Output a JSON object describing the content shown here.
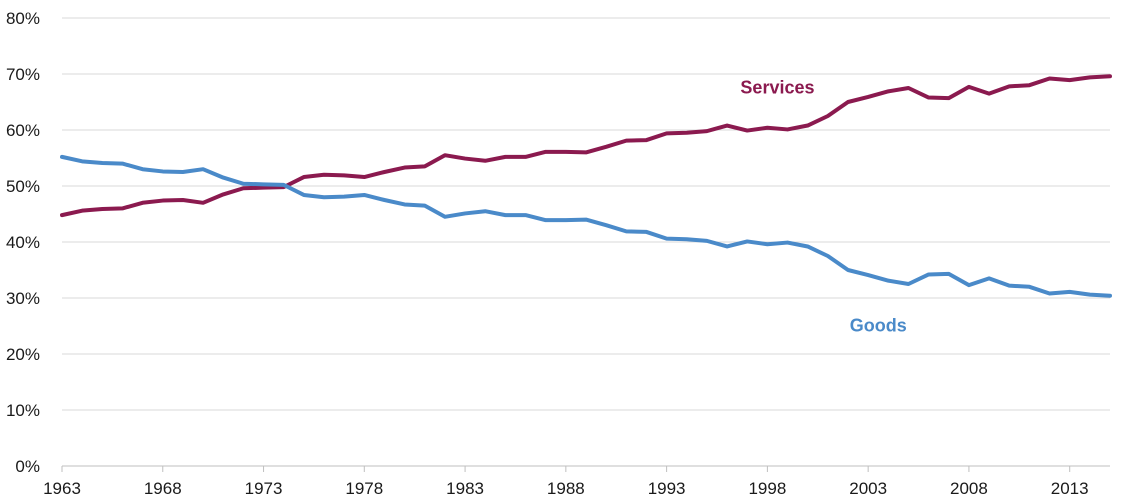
{
  "chart_data": {
    "type": "line",
    "title": "",
    "xlabel": "",
    "ylabel": "",
    "xlim": [
      1963,
      2015
    ],
    "ylim": [
      0,
      80
    ],
    "grid": true,
    "y_ticks": [
      0,
      10,
      20,
      30,
      40,
      50,
      60,
      70,
      80
    ],
    "y_tick_labels": [
      "0%",
      "10%",
      "20%",
      "30%",
      "40%",
      "50%",
      "60%",
      "70%",
      "80%"
    ],
    "x_ticks": [
      1963,
      1968,
      1973,
      1978,
      1983,
      1988,
      1993,
      1998,
      2003,
      2008,
      2013
    ],
    "x_tick_labels": [
      "1963",
      "1968",
      "1973",
      "1978",
      "1983",
      "1988",
      "1993",
      "1998",
      "2003",
      "2008",
      "2013"
    ],
    "x": [
      1963,
      1964,
      1965,
      1966,
      1967,
      1968,
      1969,
      1970,
      1971,
      1972,
      1973,
      1974,
      1975,
      1976,
      1977,
      1978,
      1979,
      1980,
      1981,
      1982,
      1983,
      1984,
      1985,
      1986,
      1987,
      1988,
      1989,
      1990,
      1991,
      1992,
      1993,
      1994,
      1995,
      1996,
      1997,
      1998,
      1999,
      2000,
      2001,
      2002,
      2003,
      2004,
      2005,
      2006,
      2007,
      2008,
      2009,
      2010,
      2011,
      2012,
      2013,
      2014,
      2015
    ],
    "series": [
      {
        "name": "Services",
        "color": "#8b1a4f",
        "values": [
          44.8,
          45.6,
          45.9,
          46.0,
          47.0,
          47.4,
          47.5,
          47.0,
          48.5,
          49.6,
          49.7,
          49.8,
          51.6,
          52.0,
          51.9,
          51.6,
          52.5,
          53.3,
          53.5,
          55.5,
          54.9,
          54.5,
          55.2,
          55.2,
          56.1,
          56.1,
          56.0,
          57.0,
          58.1,
          58.2,
          59.4,
          59.5,
          59.8,
          60.8,
          59.9,
          60.4,
          60.1,
          60.8,
          62.5,
          65.0,
          65.9,
          66.9,
          67.5,
          65.8,
          65.7,
          67.7,
          66.5,
          67.8,
          68.0,
          69.2,
          68.9,
          69.4,
          69.6
        ],
        "label_position": {
          "x": 1998.5,
          "y": 66.5
        }
      },
      {
        "name": "Goods",
        "color": "#4a8ac9",
        "values": [
          55.2,
          54.4,
          54.1,
          54.0,
          53.0,
          52.6,
          52.5,
          53.0,
          51.5,
          50.4,
          50.3,
          50.2,
          48.4,
          48.0,
          48.1,
          48.4,
          47.5,
          46.7,
          46.5,
          44.5,
          45.1,
          45.5,
          44.8,
          44.8,
          43.9,
          43.9,
          44.0,
          43.0,
          41.9,
          41.8,
          40.6,
          40.5,
          40.2,
          39.2,
          40.1,
          39.6,
          39.9,
          39.2,
          37.5,
          35.0,
          34.1,
          33.1,
          32.5,
          34.2,
          34.3,
          32.3,
          33.5,
          32.2,
          32.0,
          30.8,
          31.1,
          30.6,
          30.4
        ],
        "label_position": {
          "x": 2003.5,
          "y": 24
        }
      }
    ]
  }
}
